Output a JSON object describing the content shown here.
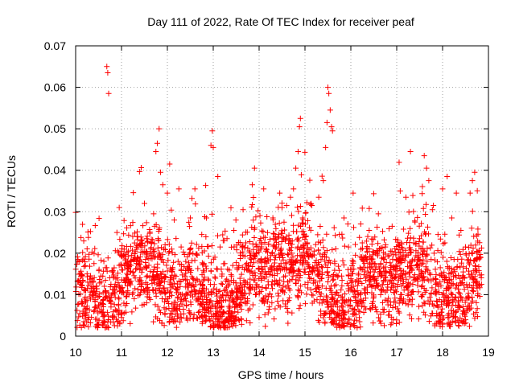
{
  "chart_data": {
    "type": "scatter",
    "title": "Day 111 of 2022, Rate Of TEC Index for receiver peaf",
    "xlabel": "GPS time / hours",
    "ylabel": "ROTI / TECUs",
    "xlim": [
      10,
      19
    ],
    "ylim": [
      0,
      0.07
    ],
    "x_ticks": [
      10,
      11,
      12,
      13,
      14,
      15,
      16,
      17,
      18,
      19
    ],
    "x_tick_labels": [
      "10",
      "11",
      "12",
      "13",
      "14",
      "15",
      "16",
      "17",
      "18",
      "19"
    ],
    "y_ticks": [
      0,
      0.01,
      0.02,
      0.03,
      0.04,
      0.05,
      0.06,
      0.07
    ],
    "y_tick_labels": [
      "0",
      "0.01",
      "0.02",
      "0.03",
      "0.04",
      "0.05",
      "0.06",
      "0.07"
    ],
    "grid": true,
    "marker": "+",
    "series": [
      {
        "name": "ROTI",
        "color": "#ff0000",
        "points": [
          [
            10.05,
            0.0185
          ],
          [
            10.1,
            0.0125
          ],
          [
            10.15,
            0.008
          ],
          [
            10.18,
            0.0035
          ],
          [
            10.2,
            0.0025
          ],
          [
            10.22,
            0.011
          ],
          [
            10.25,
            0.015
          ],
          [
            10.3,
            0.0095
          ],
          [
            10.35,
            0.013
          ],
          [
            10.4,
            0.0175
          ],
          [
            10.45,
            0.012
          ],
          [
            10.5,
            0.0075
          ],
          [
            10.55,
            0.0145
          ],
          [
            10.6,
            0.0105
          ],
          [
            10.65,
            0.0165
          ],
          [
            10.68,
            0.065
          ],
          [
            10.7,
            0.0635
          ],
          [
            10.72,
            0.0585
          ],
          [
            10.75,
            0.0085
          ],
          [
            10.8,
            0.0155
          ],
          [
            10.85,
            0.012
          ],
          [
            10.9,
            0.025
          ],
          [
            10.95,
            0.031
          ],
          [
            11.0,
            0.0045
          ],
          [
            11.05,
            0.0135
          ],
          [
            11.1,
            0.0095
          ],
          [
            11.15,
            0.0205
          ],
          [
            11.2,
            0.018
          ],
          [
            11.25,
            0.0105
          ],
          [
            11.3,
            0.014
          ],
          [
            11.35,
            0.024
          ],
          [
            11.4,
            0.0125
          ],
          [
            11.45,
            0.0075
          ],
          [
            11.5,
            0.032
          ],
          [
            11.55,
            0.0165
          ],
          [
            11.6,
            0.011
          ],
          [
            11.65,
            0.0195
          ],
          [
            11.7,
            0.0295
          ],
          [
            11.75,
            0.0445
          ],
          [
            11.78,
            0.0465
          ],
          [
            11.82,
            0.05
          ],
          [
            11.85,
            0.0395
          ],
          [
            11.9,
            0.0365
          ],
          [
            11.95,
            0.022
          ],
          [
            12.0,
            0.0345
          ],
          [
            12.05,
            0.0415
          ],
          [
            12.1,
            0.0155
          ],
          [
            12.15,
            0.028
          ],
          [
            12.2,
            0.0105
          ],
          [
            12.25,
            0.0355
          ],
          [
            12.3,
            0.0215
          ],
          [
            12.35,
            0.0065
          ],
          [
            12.4,
            0.018
          ],
          [
            12.45,
            0.0125
          ],
          [
            12.5,
            0.0285
          ],
          [
            12.55,
            0.0095
          ],
          [
            12.6,
            0.0355
          ],
          [
            12.65,
            0.0195
          ],
          [
            12.7,
            0.011
          ],
          [
            12.75,
            0.0245
          ],
          [
            12.8,
            0.0155
          ],
          [
            12.85,
            0.0285
          ],
          [
            12.9,
            0.0105
          ],
          [
            12.95,
            0.046
          ],
          [
            12.98,
            0.0495
          ],
          [
            13.0,
            0.0455
          ],
          [
            13.05,
            0.0055
          ],
          [
            13.1,
            0.0385
          ],
          [
            13.15,
            0.0215
          ],
          [
            13.2,
            0.0125
          ],
          [
            13.25,
            0.0175
          ],
          [
            13.3,
            0.0235
          ],
          [
            13.35,
            0.0085
          ],
          [
            13.4,
            0.0145
          ],
          [
            13.45,
            0.0255
          ],
          [
            13.5,
            0.0105
          ],
          [
            13.55,
            0.0165
          ],
          [
            13.6,
            0.0195
          ],
          [
            13.65,
            0.0305
          ],
          [
            13.7,
            0.0125
          ],
          [
            13.75,
            0.0085
          ],
          [
            13.8,
            0.0155
          ],
          [
            13.85,
            0.0365
          ],
          [
            13.9,
            0.0405
          ],
          [
            13.95,
            0.0215
          ],
          [
            14.0,
            0.0045
          ],
          [
            14.05,
            0.0135
          ],
          [
            14.1,
            0.0355
          ],
          [
            14.15,
            0.0205
          ],
          [
            14.2,
            0.0095
          ],
          [
            14.25,
            0.0165
          ],
          [
            14.3,
            0.0285
          ],
          [
            14.35,
            0.0215
          ],
          [
            14.4,
            0.0125
          ],
          [
            14.45,
            0.0345
          ],
          [
            14.5,
            0.0195
          ],
          [
            14.55,
            0.0105
          ],
          [
            14.6,
            0.0315
          ],
          [
            14.65,
            0.0235
          ],
          [
            14.7,
            0.0155
          ],
          [
            14.75,
            0.0355
          ],
          [
            14.8,
            0.0405
          ],
          [
            14.85,
            0.0445
          ],
          [
            14.88,
            0.0505
          ],
          [
            14.9,
            0.0525
          ],
          [
            14.95,
            0.0285
          ],
          [
            15.0,
            0.0125
          ],
          [
            15.05,
            0.0225
          ],
          [
            15.1,
            0.0165
          ],
          [
            15.15,
            0.0315
          ],
          [
            15.2,
            0.0205
          ],
          [
            15.25,
            0.0115
          ],
          [
            15.3,
            0.0335
          ],
          [
            15.35,
            0.0185
          ],
          [
            15.4,
            0.0375
          ],
          [
            15.45,
            0.0455
          ],
          [
            15.48,
            0.0515
          ],
          [
            15.5,
            0.06
          ],
          [
            15.52,
            0.0585
          ],
          [
            15.55,
            0.0545
          ],
          [
            15.58,
            0.0505
          ],
          [
            15.6,
            0.0495
          ],
          [
            15.65,
            0.0175
          ],
          [
            15.7,
            0.0105
          ],
          [
            15.75,
            0.0245
          ],
          [
            15.8,
            0.0145
          ],
          [
            15.85,
            0.0285
          ],
          [
            15.9,
            0.0085
          ],
          [
            15.95,
            0.0215
          ],
          [
            16.0,
            0.0135
          ],
          [
            16.05,
            0.0345
          ],
          [
            16.1,
            0.0195
          ],
          [
            16.15,
            0.0075
          ],
          [
            16.2,
            0.0165
          ],
          [
            16.25,
            0.0225
          ],
          [
            16.3,
            0.0105
          ],
          [
            16.35,
            0.0145
          ],
          [
            16.4,
            0.0255
          ],
          [
            16.45,
            0.0185
          ],
          [
            16.5,
            0.0095
          ],
          [
            16.55,
            0.0135
          ],
          [
            16.6,
            0.0295
          ],
          [
            16.65,
            0.0175
          ],
          [
            16.7,
            0.0065
          ],
          [
            16.75,
            0.0215
          ],
          [
            16.8,
            0.0125
          ],
          [
            16.85,
            0.0155
          ],
          [
            16.9,
            0.0265
          ],
          [
            16.95,
            0.0105
          ],
          [
            17.0,
            0.0185
          ],
          [
            17.05,
            0.0145
          ],
          [
            17.1,
            0.0225
          ],
          [
            17.15,
            0.0085
          ],
          [
            17.2,
            0.0335
          ],
          [
            17.25,
            0.0195
          ],
          [
            17.3,
            0.0445
          ],
          [
            17.35,
            0.0125
          ],
          [
            17.4,
            0.0275
          ],
          [
            17.45,
            0.0165
          ],
          [
            17.5,
            0.0235
          ],
          [
            17.55,
            0.0095
          ],
          [
            17.6,
            0.0435
          ],
          [
            17.65,
            0.0405
          ],
          [
            17.7,
            0.0375
          ],
          [
            17.75,
            0.0185
          ],
          [
            17.8,
            0.0315
          ],
          [
            17.85,
            0.0125
          ],
          [
            17.9,
            0.0245
          ],
          [
            17.95,
            0.0165
          ],
          [
            18.0,
            0.0355
          ],
          [
            18.05,
            0.0225
          ],
          [
            18.1,
            0.0385
          ],
          [
            18.15,
            0.0135
          ],
          [
            18.2,
            0.0285
          ],
          [
            18.25,
            0.0185
          ],
          [
            18.3,
            0.0345
          ],
          [
            18.35,
            0.0105
          ],
          [
            18.4,
            0.0255
          ],
          [
            18.45,
            0.0155
          ],
          [
            18.5,
            0.0215
          ],
          [
            18.55,
            0.0095
          ],
          [
            18.6,
            0.0345
          ],
          [
            18.65,
            0.0375
          ],
          [
            18.7,
            0.0395
          ],
          [
            18.75,
            0.0185
          ],
          [
            18.8,
            0.0125
          ]
        ],
        "band_seed": 111
      }
    ]
  }
}
